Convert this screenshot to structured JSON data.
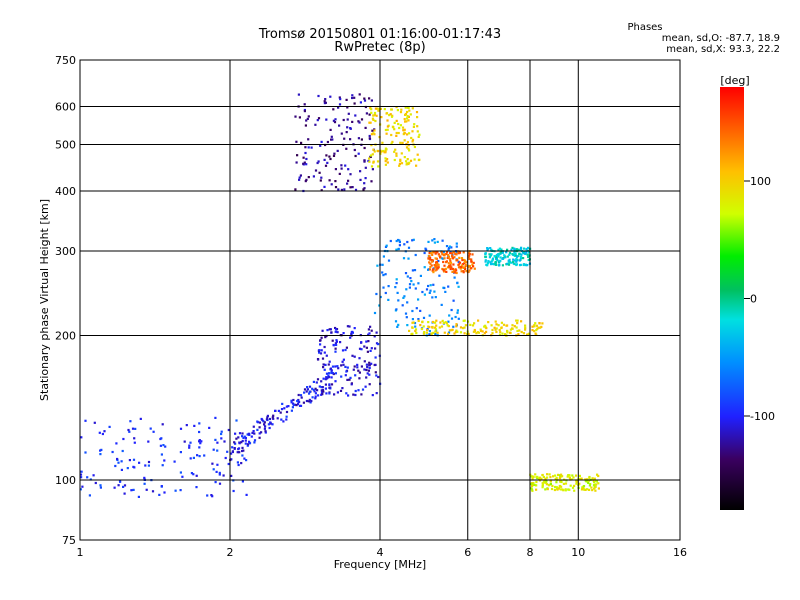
{
  "chart_data": {
    "type": "scatter",
    "title": "Tromsø 20150801 01:16:00-01:17:43",
    "subtitle": "RwPretec (8p)",
    "xlabel": "Frequency [MHz]",
    "ylabel": "Stationary phase Virtual Height [km]",
    "x_scale": "log",
    "y_scale": "log",
    "xlim": [
      1,
      16
    ],
    "ylim": [
      75,
      750
    ],
    "x_ticks": [
      1,
      2,
      4,
      6,
      8,
      10,
      16
    ],
    "y_ticks": [
      75,
      100,
      200,
      300,
      400,
      500,
      600,
      750
    ],
    "grid": true,
    "phase_stats": {
      "header": "Phases",
      "line_o": "mean, sd,O: -87.7, 18.9",
      "line_x": "mean, sd,X:  93.3, 22.2"
    },
    "colorbar": {
      "label": "[deg]",
      "range": [
        -180,
        180
      ],
      "ticks": [
        "-100",
        "0",
        "100"
      ]
    },
    "clusters": [
      {
        "name_hint": "low-frequency trace",
        "x_range": [
          1.0,
          2.2
        ],
        "y_range": [
          92,
          135
        ],
        "phase": -95
      },
      {
        "name_hint": "rising trace",
        "x_range": [
          2.0,
          3.3
        ],
        "y_range": [
          110,
          175
        ],
        "phase": -105
      },
      {
        "name_hint": "F2 trace",
        "x_range": [
          3.0,
          4.0
        ],
        "y_range": [
          150,
          210
        ],
        "phase": -110
      },
      {
        "name_hint": "upper echo block",
        "x_range": [
          2.7,
          3.9
        ],
        "y_range": [
          400,
          640
        ],
        "phase": -125
      },
      {
        "name_hint": "upper echo yellow",
        "x_range": [
          3.8,
          4.8
        ],
        "y_range": [
          450,
          600
        ],
        "phase": 95
      },
      {
        "name_hint": "mid scatter",
        "x_range": [
          3.9,
          5.8
        ],
        "y_range": [
          200,
          320
        ],
        "phase": -60
      },
      {
        "name_hint": "mid orange",
        "x_range": [
          5.0,
          6.2
        ],
        "y_range": [
          270,
          300
        ],
        "phase": 140
      },
      {
        "name_hint": "horizontal yellow",
        "x_range": [
          4.5,
          8.5
        ],
        "y_range": [
          200,
          215
        ],
        "phase": 95
      },
      {
        "name_hint": "high freq cyan",
        "x_range": [
          6.5,
          8.0
        ],
        "y_range": [
          280,
          305
        ],
        "phase": -20
      },
      {
        "name_hint": "low echo",
        "x_range": [
          8.0,
          11.0
        ],
        "y_range": [
          95,
          103
        ],
        "phase": 80
      }
    ]
  }
}
